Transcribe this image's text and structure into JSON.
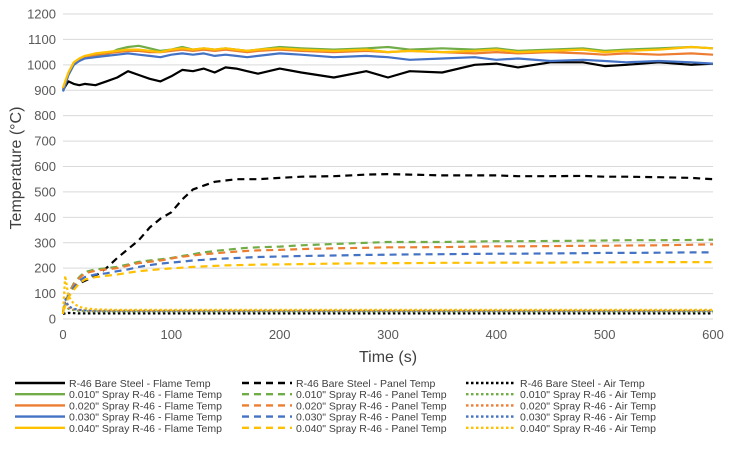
{
  "chart_data": {
    "type": "line",
    "xlabel": "Time (s)",
    "ylabel": "Temperature (°C)",
    "xlim": [
      0,
      600
    ],
    "ylim": [
      0,
      1200
    ],
    "xticks": [
      "0",
      "100",
      "200",
      "300",
      "400",
      "500",
      "600"
    ],
    "yticks": [
      "0",
      "100",
      "200",
      "300",
      "400",
      "500",
      "600",
      "700",
      "800",
      "900",
      "1000",
      "1100",
      "1200"
    ],
    "grid": true,
    "legend_position": "bottom",
    "x": [
      0,
      2,
      5,
      10,
      15,
      20,
      30,
      40,
      50,
      60,
      70,
      80,
      90,
      100,
      110,
      120,
      130,
      140,
      150,
      160,
      170,
      180,
      200,
      220,
      250,
      280,
      300,
      320,
      350,
      380,
      400,
      420,
      450,
      480,
      500,
      520,
      550,
      580,
      600
    ],
    "series": [
      {
        "name": "R-46 Bare Steel - Flame Temp",
        "color": "#000000",
        "dash": "solid",
        "values": [
          900,
          915,
          935,
          925,
          920,
          925,
          920,
          935,
          950,
          975,
          960,
          945,
          935,
          955,
          980,
          975,
          985,
          970,
          990,
          985,
          975,
          965,
          985,
          970,
          950,
          975,
          950,
          975,
          970,
          1000,
          1005,
          990,
          1010,
          1010,
          995,
          1000,
          1010,
          1000,
          1005
        ]
      },
      {
        "name": "R-46 Bare Steel - Panel Temp",
        "color": "#000000",
        "dash": "dash",
        "values": [
          30,
          60,
          90,
          125,
          140,
          150,
          170,
          200,
          240,
          275,
          310,
          360,
          395,
          420,
          470,
          510,
          525,
          540,
          545,
          550,
          550,
          550,
          555,
          560,
          562,
          568,
          570,
          568,
          565,
          565,
          565,
          562,
          562,
          563,
          560,
          560,
          558,
          555,
          550
        ]
      },
      {
        "name": "R-46 Bare Steel - Air Temp",
        "color": "#000000",
        "dash": "dot",
        "values": [
          20,
          22,
          24,
          23,
          22,
          22,
          22,
          22,
          22,
          22,
          22,
          22,
          22,
          22,
          22,
          22,
          22,
          22,
          22,
          22,
          22,
          22,
          22,
          22,
          22,
          22,
          22,
          22,
          22,
          22,
          22,
          22,
          22,
          22,
          22,
          22,
          22,
          22,
          22
        ]
      },
      {
        "name": "0.010\" Spray R-46 - Flame Temp",
        "color": "#70ad47",
        "dash": "solid",
        "values": [
          900,
          930,
          960,
          1000,
          1020,
          1030,
          1035,
          1040,
          1060,
          1070,
          1075,
          1065,
          1055,
          1060,
          1070,
          1060,
          1065,
          1060,
          1065,
          1060,
          1055,
          1060,
          1070,
          1065,
          1060,
          1065,
          1070,
          1060,
          1065,
          1060,
          1065,
          1055,
          1060,
          1065,
          1055,
          1060,
          1065,
          1070,
          1065
        ]
      },
      {
        "name": "0.010\" Spray R-46 - Panel Temp",
        "color": "#70ad47",
        "dash": "dash",
        "values": [
          30,
          60,
          100,
          140,
          165,
          185,
          195,
          200,
          205,
          215,
          225,
          230,
          235,
          240,
          248,
          255,
          262,
          268,
          272,
          276,
          280,
          282,
          285,
          290,
          295,
          300,
          303,
          303,
          303,
          305,
          306,
          306,
          307,
          308,
          309,
          310,
          310,
          311,
          312
        ]
      },
      {
        "name": "0.010\" Spray R-46 - Air Temp",
        "color": "#70ad47",
        "dash": "dot",
        "values": [
          20,
          60,
          40,
          35,
          32,
          31,
          30,
          30,
          30,
          30,
          30,
          30,
          30,
          30,
          30,
          30,
          30,
          30,
          30,
          30,
          30,
          30,
          30,
          30,
          30,
          30,
          30,
          30,
          30,
          30,
          30,
          30,
          30,
          30,
          30,
          30,
          30,
          30,
          30
        ]
      },
      {
        "name": "0.020\" Spray R-46 - Flame Temp",
        "color": "#ed7d31",
        "dash": "solid",
        "values": [
          905,
          930,
          965,
          1005,
          1020,
          1030,
          1040,
          1045,
          1050,
          1055,
          1055,
          1050,
          1050,
          1055,
          1060,
          1055,
          1060,
          1055,
          1060,
          1055,
          1050,
          1055,
          1060,
          1055,
          1050,
          1055,
          1050,
          1055,
          1050,
          1045,
          1050,
          1045,
          1050,
          1045,
          1040,
          1045,
          1040,
          1045,
          1040
        ]
      },
      {
        "name": "0.020\" Spray R-46 - Panel Temp",
        "color": "#ed7d31",
        "dash": "dash",
        "values": [
          30,
          55,
          95,
          135,
          160,
          180,
          190,
          195,
          200,
          210,
          220,
          225,
          230,
          238,
          245,
          250,
          255,
          258,
          262,
          265,
          268,
          270,
          272,
          275,
          278,
          280,
          282,
          282,
          283,
          285,
          286,
          286,
          287,
          288,
          288,
          289,
          290,
          292,
          294
        ]
      },
      {
        "name": "0.020\" Spray R-46 - Air Temp",
        "color": "#ed7d31",
        "dash": "dot",
        "values": [
          20,
          70,
          45,
          38,
          35,
          33,
          32,
          32,
          32,
          32,
          32,
          32,
          32,
          32,
          32,
          32,
          32,
          32,
          32,
          32,
          32,
          32,
          32,
          32,
          32,
          32,
          32,
          32,
          32,
          32,
          32,
          32,
          32,
          32,
          32,
          32,
          32,
          32,
          32
        ]
      },
      {
        "name": "0.030\" Spray R-46 - Flame Temp",
        "color": "#4472c4",
        "dash": "solid",
        "values": [
          895,
          920,
          960,
          1000,
          1015,
          1025,
          1030,
          1035,
          1040,
          1045,
          1040,
          1035,
          1030,
          1040,
          1045,
          1040,
          1045,
          1035,
          1040,
          1035,
          1030,
          1035,
          1045,
          1040,
          1030,
          1035,
          1030,
          1020,
          1025,
          1030,
          1020,
          1025,
          1015,
          1020,
          1015,
          1010,
          1015,
          1010,
          1005
        ]
      },
      {
        "name": "0.030\" Spray R-46 - Panel Temp",
        "color": "#4472c4",
        "dash": "dash",
        "values": [
          30,
          55,
          90,
          125,
          150,
          165,
          175,
          180,
          188,
          195,
          205,
          212,
          218,
          222,
          226,
          230,
          233,
          236,
          238,
          240,
          242,
          244,
          246,
          248,
          250,
          252,
          253,
          254,
          255,
          256,
          257,
          257,
          258,
          259,
          260,
          260,
          261,
          262,
          262
        ]
      },
      {
        "name": "0.030\" Spray R-46 - Air Temp",
        "color": "#4472c4",
        "dash": "dot",
        "values": [
          20,
          80,
          50,
          40,
          36,
          34,
          33,
          33,
          33,
          33,
          33,
          33,
          33,
          33,
          33,
          33,
          33,
          33,
          33,
          33,
          33,
          33,
          33,
          33,
          33,
          33,
          33,
          33,
          33,
          33,
          33,
          33,
          33,
          33,
          33,
          33,
          33,
          33,
          33
        ]
      },
      {
        "name": "0.040\" Spray R-46 - Flame Temp",
        "color": "#ffc000",
        "dash": "solid",
        "values": [
          910,
          935,
          970,
          1010,
          1025,
          1035,
          1045,
          1050,
          1055,
          1060,
          1060,
          1055,
          1050,
          1060,
          1065,
          1060,
          1065,
          1060,
          1065,
          1060,
          1055,
          1060,
          1065,
          1060,
          1055,
          1060,
          1050,
          1055,
          1050,
          1055,
          1060,
          1050,
          1055,
          1060,
          1050,
          1055,
          1060,
          1070,
          1065
        ]
      },
      {
        "name": "0.040\" Spray R-46 - Panel Temp",
        "color": "#ffc000",
        "dash": "dash",
        "values": [
          30,
          50,
          85,
          115,
          140,
          155,
          165,
          170,
          175,
          182,
          188,
          192,
          196,
          199,
          202,
          205,
          207,
          209,
          211,
          212,
          213,
          214,
          215,
          216,
          218,
          219,
          220,
          220,
          221,
          221,
          222,
          222,
          222,
          223,
          223,
          223,
          224,
          224,
          224
        ]
      },
      {
        "name": "0.040\" Spray R-46 - Air Temp",
        "color": "#ffc000",
        "dash": "dot",
        "values": [
          20,
          170,
          90,
          60,
          48,
          42,
          38,
          37,
          36,
          36,
          36,
          36,
          36,
          36,
          36,
          36,
          36,
          36,
          36,
          36,
          36,
          36,
          36,
          36,
          36,
          36,
          36,
          36,
          36,
          36,
          36,
          36,
          36,
          36,
          36,
          36,
          36,
          36,
          36
        ]
      }
    ]
  }
}
